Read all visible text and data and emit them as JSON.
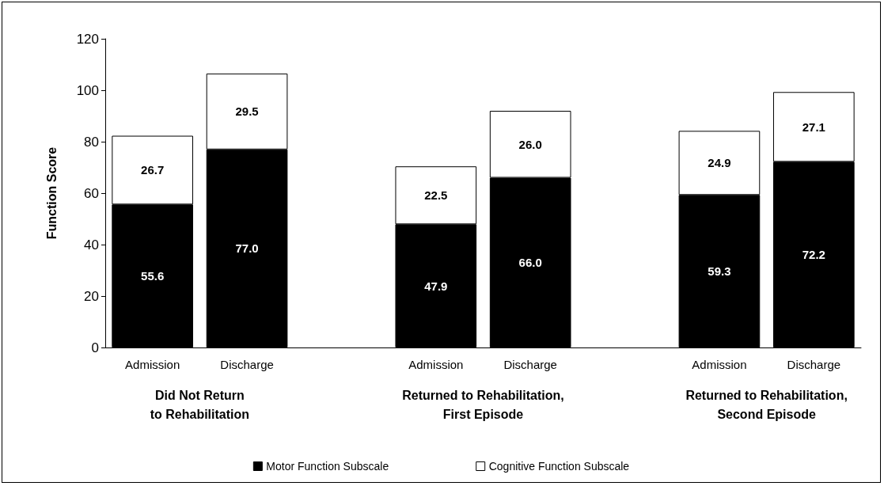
{
  "chart_data": {
    "type": "bar",
    "ylabel": "Function Score",
    "stacked": true,
    "grid": false,
    "legend": "bottom",
    "categories": [
      "Admission",
      "Discharge",
      null,
      "Admission",
      "Discharge",
      null,
      "Admission",
      "Discharge"
    ],
    "ylim": [
      0,
      120
    ],
    "yticks": [
      0,
      20,
      40,
      60,
      80,
      100,
      120
    ],
    "series": [
      {
        "name": "Motor Function Subscale",
        "color": "#000000",
        "values": [
          55.6,
          77.0,
          null,
          47.9,
          66.0,
          null,
          59.3,
          72.2
        ],
        "value_labels": [
          "55.6",
          "77.0",
          null,
          "47.9",
          "66.0",
          null,
          "59.3",
          "72.2"
        ]
      },
      {
        "name": "Cognitive Function Subscale",
        "color": "#ffffff",
        "values": [
          26.7,
          29.5,
          null,
          22.5,
          26.0,
          null,
          24.9,
          27.1
        ],
        "value_labels": [
          "26.7",
          "29.5",
          null,
          "22.5",
          "26.0",
          null,
          "24.9",
          "27.1"
        ]
      }
    ],
    "annotations": [
      "Did Not Return\nto Rehabilitation",
      "Returned to Rehabilitation,\nFirst Episode",
      "Returned to Rehabilitation,\nSecond Episode"
    ]
  }
}
